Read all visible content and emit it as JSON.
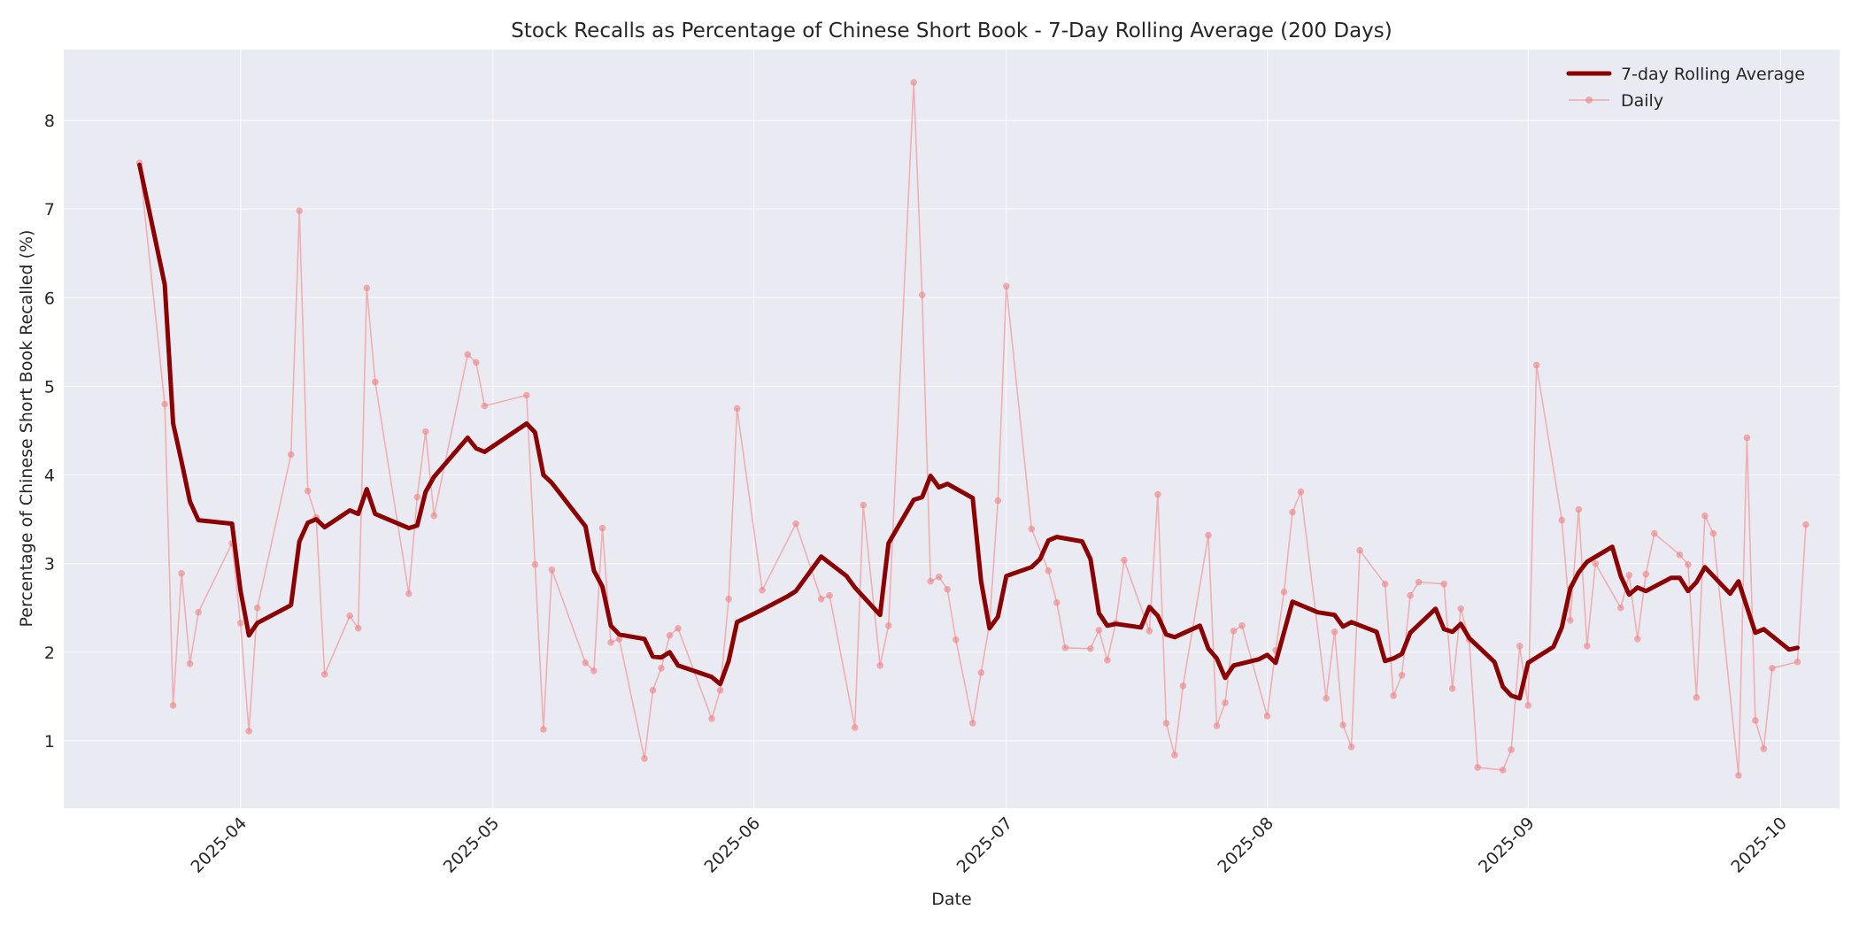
{
  "chart_data": {
    "type": "line",
    "title": "Stock Recalls as Percentage of Chinese Short Book - 7-Day Rolling Average (200 Days)",
    "xlabel": "Date",
    "ylabel": "Percentage of Chinese Short Book Recalled (%)",
    "ylim": [
      0.24,
      8.8
    ],
    "xlim": [
      "2025-03-11",
      "2025-10-08"
    ],
    "grid": true,
    "legend_position": "upper right",
    "x_ticks": [
      "2025-04",
      "2025-05",
      "2025-06",
      "2025-07",
      "2025-08",
      "2025-09",
      "2025-10"
    ],
    "x_tick_dates": [
      "2025-04-01",
      "2025-05-01",
      "2025-06-01",
      "2025-07-01",
      "2025-08-01",
      "2025-09-01",
      "2025-10-01"
    ],
    "y_ticks": [
      1,
      2,
      3,
      4,
      5,
      6,
      7,
      8
    ],
    "colors": {
      "rolling": "#8b0000",
      "daily": "#f08080",
      "plot_bg": "#eaeaf2",
      "grid": "#ffffff"
    },
    "series": [
      {
        "name": "7-day Rolling Average",
        "style": "thick-line",
        "points": [
          [
            "2025-03-20",
            7.5
          ],
          [
            "2025-03-23",
            6.15
          ],
          [
            "2025-03-24",
            4.58
          ],
          [
            "2025-03-25",
            4.15
          ],
          [
            "2025-03-26",
            3.7
          ],
          [
            "2025-03-27",
            3.49
          ],
          [
            "2025-03-31",
            3.45
          ],
          [
            "2025-04-01",
            2.7
          ],
          [
            "2025-04-02",
            2.19
          ],
          [
            "2025-04-03",
            2.33
          ],
          [
            "2025-04-07",
            2.53
          ],
          [
            "2025-04-08",
            3.25
          ],
          [
            "2025-04-09",
            3.46
          ],
          [
            "2025-04-10",
            3.5
          ],
          [
            "2025-04-11",
            3.41
          ],
          [
            "2025-04-14",
            3.6
          ],
          [
            "2025-04-15",
            3.56
          ],
          [
            "2025-04-16",
            3.84
          ],
          [
            "2025-04-17",
            3.56
          ],
          [
            "2025-04-21",
            3.4
          ],
          [
            "2025-04-22",
            3.43
          ],
          [
            "2025-04-23",
            3.81
          ],
          [
            "2025-04-24",
            3.98
          ],
          [
            "2025-04-28",
            4.42
          ],
          [
            "2025-04-29",
            4.3
          ],
          [
            "2025-04-30",
            4.26
          ],
          [
            "2025-05-05",
            4.58
          ],
          [
            "2025-05-06",
            4.48
          ],
          [
            "2025-05-07",
            4.0
          ],
          [
            "2025-05-08",
            3.91
          ],
          [
            "2025-05-12",
            3.42
          ],
          [
            "2025-05-13",
            2.92
          ],
          [
            "2025-05-14",
            2.74
          ],
          [
            "2025-05-15",
            2.3
          ],
          [
            "2025-05-16",
            2.2
          ],
          [
            "2025-05-19",
            2.15
          ],
          [
            "2025-05-20",
            1.95
          ],
          [
            "2025-05-21",
            1.94
          ],
          [
            "2025-05-22",
            2.0
          ],
          [
            "2025-05-23",
            1.85
          ],
          [
            "2025-05-27",
            1.72
          ],
          [
            "2025-05-28",
            1.64
          ],
          [
            "2025-05-29",
            1.9
          ],
          [
            "2025-05-30",
            2.34
          ],
          [
            "2025-06-02",
            2.48
          ],
          [
            "2025-06-05",
            2.63
          ],
          [
            "2025-06-06",
            2.69
          ],
          [
            "2025-06-09",
            3.08
          ],
          [
            "2025-06-12",
            2.86
          ],
          [
            "2025-06-13",
            2.73
          ],
          [
            "2025-06-16",
            2.42
          ],
          [
            "2025-06-17",
            3.23
          ],
          [
            "2025-06-20",
            3.72
          ],
          [
            "2025-06-21",
            3.75
          ],
          [
            "2025-06-22",
            3.99
          ],
          [
            "2025-06-23",
            3.86
          ],
          [
            "2025-06-24",
            3.9
          ],
          [
            "2025-06-27",
            3.74
          ],
          [
            "2025-06-28",
            2.8
          ],
          [
            "2025-06-29",
            2.27
          ],
          [
            "2025-06-30",
            2.4
          ],
          [
            "2025-07-01",
            2.86
          ],
          [
            "2025-07-04",
            2.96
          ],
          [
            "2025-07-05",
            3.05
          ],
          [
            "2025-07-06",
            3.26
          ],
          [
            "2025-07-07",
            3.3
          ],
          [
            "2025-07-10",
            3.25
          ],
          [
            "2025-07-11",
            3.05
          ],
          [
            "2025-07-12",
            2.44
          ],
          [
            "2025-07-13",
            2.3
          ],
          [
            "2025-07-14",
            2.32
          ],
          [
            "2025-07-17",
            2.28
          ],
          [
            "2025-07-18",
            2.51
          ],
          [
            "2025-07-19",
            2.41
          ],
          [
            "2025-07-20",
            2.2
          ],
          [
            "2025-07-21",
            2.17
          ],
          [
            "2025-07-24",
            2.3
          ],
          [
            "2025-07-25",
            2.04
          ],
          [
            "2025-07-26",
            1.93
          ],
          [
            "2025-07-27",
            1.71
          ],
          [
            "2025-07-28",
            1.85
          ],
          [
            "2025-07-31",
            1.92
          ],
          [
            "2025-08-01",
            1.97
          ],
          [
            "2025-08-02",
            1.88
          ],
          [
            "2025-08-04",
            2.57
          ],
          [
            "2025-08-07",
            2.45
          ],
          [
            "2025-08-09",
            2.42
          ],
          [
            "2025-08-10",
            2.29
          ],
          [
            "2025-08-11",
            2.34
          ],
          [
            "2025-08-14",
            2.23
          ],
          [
            "2025-08-15",
            1.9
          ],
          [
            "2025-08-16",
            1.93
          ],
          [
            "2025-08-17",
            1.98
          ],
          [
            "2025-08-18",
            2.22
          ],
          [
            "2025-08-21",
            2.49
          ],
          [
            "2025-08-22",
            2.26
          ],
          [
            "2025-08-23",
            2.23
          ],
          [
            "2025-08-24",
            2.32
          ],
          [
            "2025-08-25",
            2.16
          ],
          [
            "2025-08-28",
            1.89
          ],
          [
            "2025-08-29",
            1.61
          ],
          [
            "2025-08-30",
            1.51
          ],
          [
            "2025-08-31",
            1.48
          ],
          [
            "2025-09-01",
            1.88
          ],
          [
            "2025-09-04",
            2.06
          ],
          [
            "2025-09-05",
            2.28
          ],
          [
            "2025-09-06",
            2.72
          ],
          [
            "2025-09-07",
            2.9
          ],
          [
            "2025-09-08",
            3.02
          ],
          [
            "2025-09-11",
            3.19
          ],
          [
            "2025-09-12",
            2.86
          ],
          [
            "2025-09-13",
            2.65
          ],
          [
            "2025-09-14",
            2.73
          ],
          [
            "2025-09-15",
            2.69
          ],
          [
            "2025-09-18",
            2.84
          ],
          [
            "2025-09-19",
            2.84
          ],
          [
            "2025-09-20",
            2.69
          ],
          [
            "2025-09-21",
            2.79
          ],
          [
            "2025-09-22",
            2.96
          ],
          [
            "2025-09-25",
            2.66
          ],
          [
            "2025-09-26",
            2.8
          ],
          [
            "2025-09-27",
            2.51
          ],
          [
            "2025-09-28",
            2.22
          ],
          [
            "2025-09-29",
            2.26
          ],
          [
            "2025-10-02",
            2.03
          ],
          [
            "2025-10-03",
            2.05
          ]
        ]
      },
      {
        "name": "Daily",
        "style": "thin-line-with-markers",
        "points": [
          [
            "2025-03-20",
            7.52
          ],
          [
            "2025-03-23",
            4.8
          ],
          [
            "2025-03-24",
            1.4
          ],
          [
            "2025-03-25",
            2.89
          ],
          [
            "2025-03-26",
            1.87
          ],
          [
            "2025-03-27",
            2.45
          ],
          [
            "2025-03-31",
            3.23
          ],
          [
            "2025-04-01",
            2.33
          ],
          [
            "2025-04-02",
            1.11
          ],
          [
            "2025-04-03",
            2.5
          ],
          [
            "2025-04-07",
            4.23
          ],
          [
            "2025-04-08",
            6.98
          ],
          [
            "2025-04-09",
            3.82
          ],
          [
            "2025-04-10",
            3.52
          ],
          [
            "2025-04-11",
            1.75
          ],
          [
            "2025-04-14",
            2.41
          ],
          [
            "2025-04-15",
            2.27
          ],
          [
            "2025-04-16",
            6.11
          ],
          [
            "2025-04-17",
            5.05
          ],
          [
            "2025-04-21",
            2.66
          ],
          [
            "2025-04-22",
            3.75
          ],
          [
            "2025-04-23",
            4.49
          ],
          [
            "2025-04-24",
            3.54
          ],
          [
            "2025-04-28",
            5.36
          ],
          [
            "2025-04-29",
            5.27
          ],
          [
            "2025-04-30",
            4.78
          ],
          [
            "2025-05-05",
            4.9
          ],
          [
            "2025-05-06",
            2.99
          ],
          [
            "2025-05-07",
            1.13
          ],
          [
            "2025-05-08",
            2.93
          ],
          [
            "2025-05-12",
            1.88
          ],
          [
            "2025-05-13",
            1.79
          ],
          [
            "2025-05-14",
            3.4
          ],
          [
            "2025-05-15",
            2.11
          ],
          [
            "2025-05-16",
            2.15
          ],
          [
            "2025-05-19",
            0.8
          ],
          [
            "2025-05-20",
            1.57
          ],
          [
            "2025-05-21",
            1.82
          ],
          [
            "2025-05-22",
            2.19
          ],
          [
            "2025-05-23",
            2.27
          ],
          [
            "2025-05-27",
            1.25
          ],
          [
            "2025-05-28",
            1.57
          ],
          [
            "2025-05-29",
            2.6
          ],
          [
            "2025-05-30",
            4.75
          ],
          [
            "2025-06-02",
            2.7
          ],
          [
            "2025-06-06",
            3.45
          ],
          [
            "2025-06-09",
            2.6
          ],
          [
            "2025-06-10",
            2.64
          ],
          [
            "2025-06-13",
            1.15
          ],
          [
            "2025-06-14",
            3.66
          ],
          [
            "2025-06-16",
            1.85
          ],
          [
            "2025-06-17",
            2.3
          ],
          [
            "2025-06-20",
            8.43
          ],
          [
            "2025-06-21",
            6.03
          ],
          [
            "2025-06-22",
            2.8
          ],
          [
            "2025-06-23",
            2.85
          ],
          [
            "2025-06-24",
            2.71
          ],
          [
            "2025-06-25",
            2.14
          ],
          [
            "2025-06-27",
            1.2
          ],
          [
            "2025-06-28",
            1.77
          ],
          [
            "2025-06-29",
            2.32
          ],
          [
            "2025-06-30",
            3.71
          ],
          [
            "2025-07-01",
            6.13
          ],
          [
            "2025-07-04",
            3.39
          ],
          [
            "2025-07-06",
            2.92
          ],
          [
            "2025-07-07",
            2.56
          ],
          [
            "2025-07-08",
            2.05
          ],
          [
            "2025-07-11",
            2.04
          ],
          [
            "2025-07-12",
            2.25
          ],
          [
            "2025-07-13",
            1.91
          ],
          [
            "2025-07-14",
            2.33
          ],
          [
            "2025-07-15",
            3.04
          ],
          [
            "2025-07-18",
            2.24
          ],
          [
            "2025-07-19",
            3.78
          ],
          [
            "2025-07-20",
            1.2
          ],
          [
            "2025-07-21",
            0.84
          ],
          [
            "2025-07-22",
            1.62
          ],
          [
            "2025-07-25",
            3.32
          ],
          [
            "2025-07-26",
            1.17
          ],
          [
            "2025-07-27",
            1.43
          ],
          [
            "2025-07-28",
            2.24
          ],
          [
            "2025-07-29",
            2.3
          ],
          [
            "2025-08-01",
            1.28
          ],
          [
            "2025-08-02",
            2.02
          ],
          [
            "2025-08-03",
            2.68
          ],
          [
            "2025-08-04",
            3.58
          ],
          [
            "2025-08-05",
            3.81
          ],
          [
            "2025-08-08",
            1.48
          ],
          [
            "2025-08-09",
            2.23
          ],
          [
            "2025-08-10",
            1.18
          ],
          [
            "2025-08-11",
            0.93
          ],
          [
            "2025-08-12",
            3.15
          ],
          [
            "2025-08-15",
            2.77
          ],
          [
            "2025-08-16",
            1.51
          ],
          [
            "2025-08-17",
            1.74
          ],
          [
            "2025-08-18",
            2.64
          ],
          [
            "2025-08-19",
            2.79
          ],
          [
            "2025-08-22",
            2.77
          ],
          [
            "2025-08-23",
            1.59
          ],
          [
            "2025-08-24",
            2.49
          ],
          [
            "2025-08-25",
            2.14
          ],
          [
            "2025-08-26",
            0.7
          ],
          [
            "2025-08-29",
            0.67
          ],
          [
            "2025-08-30",
            0.9
          ],
          [
            "2025-08-31",
            2.07
          ],
          [
            "2025-09-01",
            1.4
          ],
          [
            "2025-09-02",
            5.24
          ],
          [
            "2025-09-05",
            3.49
          ],
          [
            "2025-09-06",
            2.36
          ],
          [
            "2025-09-07",
            3.61
          ],
          [
            "2025-09-08",
            2.07
          ],
          [
            "2025-09-09",
            3.0
          ],
          [
            "2025-09-12",
            2.5
          ],
          [
            "2025-09-13",
            2.87
          ],
          [
            "2025-09-14",
            2.15
          ],
          [
            "2025-09-15",
            2.88
          ],
          [
            "2025-09-16",
            3.34
          ],
          [
            "2025-09-19",
            3.1
          ],
          [
            "2025-09-20",
            2.99
          ],
          [
            "2025-09-21",
            1.49
          ],
          [
            "2025-09-22",
            3.54
          ],
          [
            "2025-09-23",
            3.34
          ],
          [
            "2025-09-26",
            0.61
          ],
          [
            "2025-09-27",
            4.42
          ],
          [
            "2025-09-28",
            1.23
          ],
          [
            "2025-09-29",
            0.91
          ],
          [
            "2025-09-30",
            1.82
          ],
          [
            "2025-10-03",
            1.89
          ],
          [
            "2025-10-04",
            3.44
          ]
        ]
      }
    ],
    "legend": [
      {
        "label": "7-day Rolling Average",
        "series": 0
      },
      {
        "label": "Daily",
        "series": 1
      }
    ]
  }
}
